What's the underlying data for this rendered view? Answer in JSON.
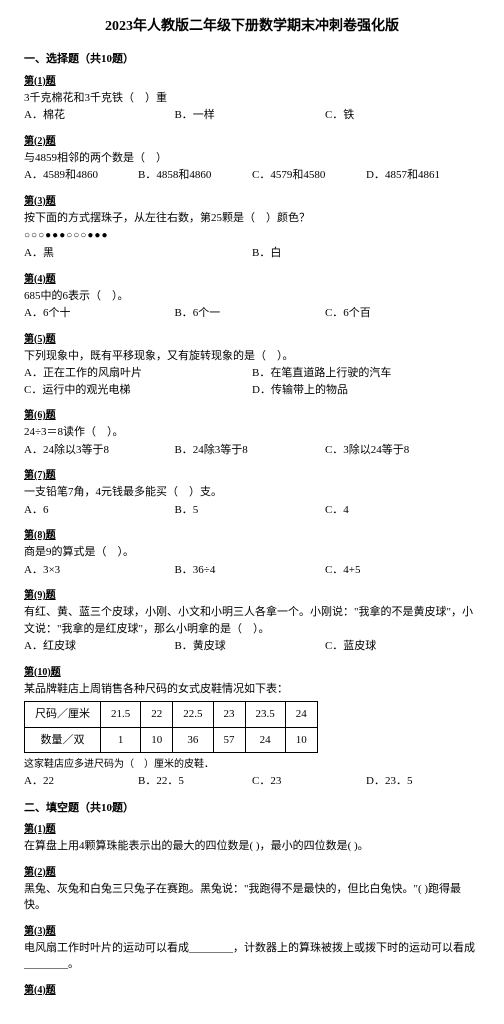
{
  "title": "2023年人教版二年级下册数学期末冲刺卷强化版",
  "section1": {
    "heading": "一、选择题（共10题）",
    "q1": {
      "label": "第(1)题",
      "stem": "3千克棉花和3千克铁（　）重",
      "opts": {
        "a": "A．棉花",
        "b": "B．一样",
        "c": "C．铁"
      }
    },
    "q2": {
      "label": "第(2)题",
      "stem": "与4859相邻的两个数是（　）",
      "opts": {
        "a": "A．4589和4860",
        "b": "B．4858和4860",
        "c": "C．4579和4580",
        "d": "D．4857和4861"
      }
    },
    "q3": {
      "label": "第(3)题",
      "stem": "按下面的方式摆珠子，从左往右数，第25颗是（　）颜色？",
      "circles": "○○○●●●○○○●●●",
      "opts": {
        "a": "A．黑",
        "b": "B．白"
      }
    },
    "q4": {
      "label": "第(4)题",
      "stem": "685中的6表示（　）。",
      "opts": {
        "a": "A．6个十",
        "b": "B．6个一",
        "c": "C．6个百"
      }
    },
    "q5": {
      "label": "第(5)题",
      "stem": "下列现象中，既有平移现象，又有旋转现象的是（　）。",
      "opts": {
        "a": "A．正在工作的风扇叶片",
        "b": "B．在笔直道路上行驶的汽车",
        "c": "C．运行中的观光电梯",
        "d": "D．传输带上的物品"
      }
    },
    "q6": {
      "label": "第(6)题",
      "stem": "24÷3＝8读作（　）。",
      "opts": {
        "a": "A．24除以3等于8",
        "b": "B．24除3等于8",
        "c": "C．3除以24等于8"
      }
    },
    "q7": {
      "label": "第(7)题",
      "stem": "一支铅笔7角，4元钱最多能买（　）支。",
      "opts": {
        "a": "A．6",
        "b": "B．5",
        "c": "C．4"
      }
    },
    "q8": {
      "label": "第(8)题",
      "stem": "商是9的算式是（　）。",
      "opts": {
        "a": "A．3×3",
        "b": "B．36÷4",
        "c": "C．4+5"
      }
    },
    "q9": {
      "label": "第(9)题",
      "stem": "有红、黄、蓝三个皮球，小刚、小文和小明三人各拿一个。小刚说：\"我拿的不是黄皮球\"，小文说：\"我拿的是红皮球\"，那么小明拿的是（　）。",
      "opts": {
        "a": "A．红皮球",
        "b": "B．黄皮球",
        "c": "C．蓝皮球"
      }
    },
    "q10": {
      "label": "第(10)题",
      "stem1": "某品牌鞋店上周销售各种尺码的女式皮鞋情况如下表：",
      "table": {
        "row1_label": "尺码／厘米",
        "row1": [
          "21.5",
          "22",
          "22.5",
          "23",
          "23.5",
          "24"
        ],
        "row2_label": "数量／双",
        "row2": [
          "1",
          "10",
          "36",
          "57",
          "24",
          "10"
        ]
      },
      "stem2": "这家鞋店应多进尺码为（　）厘米的皮鞋．",
      "opts": {
        "a": "A．22",
        "b": "B．22．5",
        "c": "C．23",
        "d": "D．23．5"
      }
    }
  },
  "section2": {
    "heading": "二、填空题（共10题）",
    "q1": {
      "label": "第(1)题",
      "stem": "在算盘上用4颗算珠能表示出的最大的四位数是(        )，最小的四位数是(        )。"
    },
    "q2": {
      "label": "第(2)题",
      "stem": "黑兔、灰兔和白兔三只兔子在赛跑。黑兔说：\"我跑得不是最快的，但比白兔快。\"(        )跑得最快。"
    },
    "q3": {
      "label": "第(3)题",
      "stem": "电风扇工作时叶片的运动可以看成________，计数器上的算珠被拨上或拨下时的运动可以看成________。"
    },
    "q4": {
      "label": "第(4)题"
    }
  }
}
